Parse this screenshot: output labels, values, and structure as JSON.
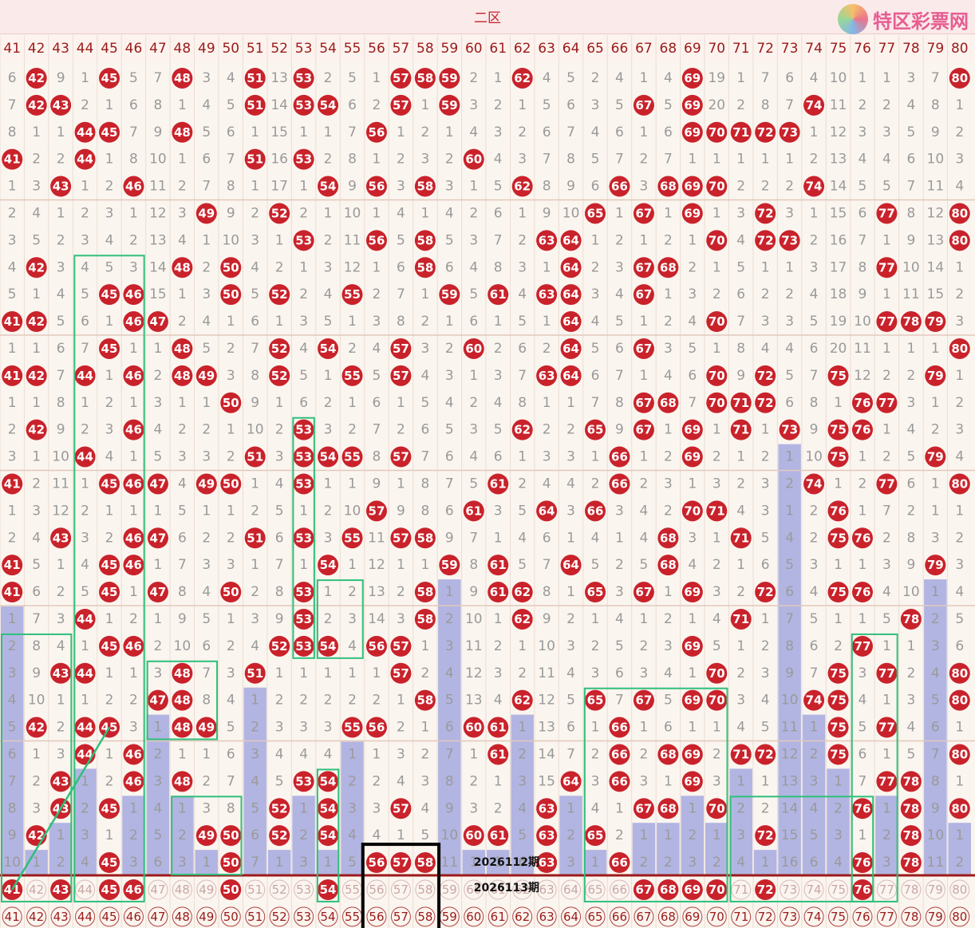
{
  "header": {
    "zone_title": "二区",
    "logo_text": "特区彩票网"
  },
  "colors": {
    "hit_ball": "#c9222b",
    "miss_bar": "#aaaee0",
    "highlight_box": "#2ebf7a",
    "selection_box": "#000000",
    "divider": "#9c1b1b"
  },
  "chart_data": {
    "type": "table",
    "columns": [
      "41",
      "42",
      "43",
      "44",
      "45",
      "46",
      "47",
      "48",
      "49",
      "50",
      "51",
      "52",
      "53",
      "54",
      "55",
      "56",
      "57",
      "58",
      "59",
      "60",
      "61",
      "62",
      "63",
      "64",
      "65",
      "66",
      "67",
      "68",
      "69",
      "70",
      "71",
      "72",
      "73",
      "74",
      "75",
      "76",
      "77",
      "78",
      "79",
      "80"
    ],
    "rows": [
      [
        6,
        "42",
        9,
        1,
        "45",
        5,
        7,
        "48",
        3,
        4,
        "51",
        13,
        "53",
        2,
        5,
        1,
        "57",
        "58",
        "59",
        2,
        1,
        "62",
        4,
        5,
        2,
        4,
        1,
        4,
        "69",
        19,
        1,
        7,
        6,
        4,
        10,
        1,
        1,
        3,
        7,
        "80"
      ],
      [
        7,
        "42",
        "43",
        2,
        1,
        6,
        8,
        1,
        4,
        5,
        "51",
        14,
        "53",
        "54",
        6,
        2,
        "57",
        1,
        "59",
        3,
        2,
        1,
        5,
        6,
        3,
        5,
        "67",
        5,
        "69",
        20,
        2,
        8,
        7,
        "74",
        11,
        2,
        2,
        4,
        8,
        1
      ],
      [
        8,
        1,
        1,
        "44",
        "45",
        7,
        9,
        "48",
        5,
        6,
        1,
        15,
        1,
        1,
        7,
        "56",
        1,
        2,
        1,
        4,
        3,
        2,
        6,
        7,
        4,
        6,
        1,
        6,
        "69",
        "70",
        "71",
        "72",
        "73",
        1,
        12,
        3,
        3,
        5,
        9,
        2
      ],
      [
        "41",
        2,
        2,
        "44",
        1,
        8,
        10,
        1,
        6,
        7,
        "51",
        16,
        "53",
        2,
        8,
        1,
        2,
        3,
        2,
        "60",
        4,
        3,
        7,
        8,
        5,
        7,
        2,
        7,
        1,
        1,
        1,
        1,
        1,
        2,
        13,
        4,
        4,
        6,
        10,
        3
      ],
      [
        1,
        3,
        "43",
        1,
        2,
        "46",
        11,
        2,
        7,
        8,
        1,
        17,
        1,
        "54",
        9,
        "56",
        3,
        "58",
        3,
        1,
        5,
        "62",
        8,
        9,
        6,
        "66",
        3,
        "68",
        "69",
        "70",
        2,
        2,
        2,
        "74",
        14,
        5,
        5,
        7,
        11,
        4
      ],
      [
        2,
        4,
        1,
        2,
        3,
        1,
        12,
        3,
        "49",
        9,
        2,
        "52",
        2,
        1,
        10,
        1,
        4,
        1,
        4,
        2,
        6,
        1,
        9,
        10,
        "65",
        1,
        "67",
        1,
        "69",
        1,
        3,
        "72",
        3,
        1,
        15,
        6,
        "77",
        8,
        12,
        "80"
      ],
      [
        3,
        5,
        2,
        3,
        4,
        2,
        13,
        4,
        1,
        10,
        3,
        1,
        "53",
        2,
        11,
        "56",
        5,
        "58",
        5,
        3,
        7,
        2,
        "63",
        "64",
        1,
        2,
        1,
        2,
        1,
        "70",
        4,
        "72",
        "73",
        2,
        16,
        7,
        1,
        9,
        13,
        "80"
      ],
      [
        4,
        "42",
        3,
        4,
        5,
        3,
        14,
        "48",
        2,
        "50",
        4,
        2,
        1,
        3,
        12,
        1,
        6,
        "58",
        6,
        4,
        8,
        3,
        1,
        "64",
        2,
        3,
        "67",
        "68",
        2,
        1,
        5,
        1,
        1,
        3,
        17,
        8,
        "77",
        10,
        14,
        1
      ],
      [
        5,
        1,
        4,
        5,
        "45",
        "46",
        15,
        1,
        3,
        "50",
        5,
        "52",
        2,
        4,
        "55",
        2,
        7,
        1,
        "59",
        5,
        "61",
        4,
        "63",
        "64",
        3,
        4,
        "67",
        1,
        3,
        2,
        6,
        2,
        2,
        4,
        18,
        9,
        1,
        11,
        15,
        2
      ],
      [
        "41",
        "42",
        5,
        6,
        1,
        "46",
        "47",
        2,
        4,
        1,
        6,
        1,
        3,
        5,
        1,
        3,
        8,
        2,
        1,
        6,
        1,
        5,
        1,
        "64",
        4,
        5,
        1,
        2,
        4,
        "70",
        7,
        3,
        3,
        5,
        19,
        10,
        "77",
        "78",
        "79",
        3
      ],
      [
        1,
        1,
        6,
        7,
        "45",
        1,
        1,
        "48",
        5,
        2,
        7,
        "52",
        4,
        "54",
        2,
        4,
        "57",
        3,
        2,
        "60",
        2,
        6,
        2,
        "64",
        5,
        6,
        "67",
        3,
        5,
        1,
        8,
        4,
        4,
        6,
        20,
        11,
        1,
        1,
        1,
        "80"
      ],
      [
        "41",
        "42",
        7,
        "44",
        1,
        "46",
        2,
        "48",
        "49",
        3,
        8,
        "52",
        5,
        1,
        "55",
        5,
        "57",
        4,
        3,
        1,
        3,
        7,
        "63",
        "64",
        6,
        7,
        1,
        4,
        6,
        "70",
        9,
        "72",
        5,
        7,
        "75",
        12,
        2,
        2,
        "79",
        1
      ],
      [
        1,
        1,
        8,
        1,
        2,
        1,
        3,
        1,
        1,
        "50",
        9,
        1,
        6,
        2,
        1,
        6,
        1,
        5,
        4,
        2,
        4,
        8,
        1,
        1,
        7,
        8,
        "67",
        "68",
        7,
        "70",
        "71",
        "72",
        6,
        8,
        1,
        "76",
        "77",
        3,
        1,
        2
      ],
      [
        2,
        "42",
        9,
        2,
        3,
        "46",
        4,
        2,
        2,
        1,
        10,
        2,
        "53",
        3,
        2,
        7,
        2,
        6,
        5,
        3,
        5,
        "62",
        2,
        2,
        "65",
        9,
        "67",
        1,
        "69",
        1,
        "71",
        1,
        "73",
        9,
        "75",
        "76",
        1,
        4,
        2,
        3
      ],
      [
        3,
        1,
        10,
        "44",
        4,
        1,
        5,
        3,
        3,
        2,
        "51",
        3,
        "53",
        "54",
        "55",
        8,
        "57",
        7,
        6,
        4,
        6,
        1,
        3,
        3,
        1,
        "66",
        1,
        2,
        "69",
        2,
        1,
        2,
        1,
        10,
        "75",
        1,
        2,
        5,
        "79",
        4
      ],
      [
        "41",
        2,
        11,
        1,
        "45",
        "46",
        "47",
        4,
        "49",
        "50",
        1,
        4,
        "53",
        1,
        1,
        9,
        1,
        8,
        7,
        5,
        "61",
        2,
        4,
        4,
        2,
        "66",
        2,
        3,
        1,
        3,
        2,
        3,
        2,
        "74",
        1,
        2,
        "77",
        6,
        1,
        "80"
      ],
      [
        1,
        3,
        12,
        2,
        1,
        1,
        1,
        5,
        1,
        1,
        2,
        5,
        1,
        2,
        10,
        "57",
        9,
        8,
        6,
        "61",
        3,
        5,
        "64",
        3,
        "66",
        3,
        4,
        2,
        "70",
        "71",
        4,
        3,
        1,
        2,
        "76",
        1,
        7,
        2,
        1,
        1
      ],
      [
        2,
        4,
        "43",
        3,
        2,
        "46",
        "47",
        6,
        2,
        2,
        "51",
        6,
        "53",
        3,
        "55",
        11,
        "57",
        "58",
        9,
        7,
        1,
        4,
        6,
        1,
        4,
        1,
        4,
        "68",
        3,
        1,
        "71",
        5,
        4,
        2,
        "75",
        "76",
        2,
        8,
        3,
        2
      ],
      [
        "41",
        5,
        1,
        4,
        "45",
        "46",
        1,
        7,
        3,
        3,
        1,
        7,
        1,
        "54",
        1,
        12,
        1,
        1,
        "59",
        8,
        "61",
        5,
        7,
        "64",
        5,
        2,
        5,
        "68",
        4,
        2,
        1,
        6,
        5,
        3,
        1,
        1,
        3,
        9,
        "79",
        3
      ],
      [
        "41",
        6,
        2,
        5,
        "45",
        1,
        "47",
        8,
        4,
        "50",
        2,
        8,
        "53",
        1,
        2,
        13,
        2,
        "58",
        1,
        9,
        "61",
        "62",
        8,
        1,
        "65",
        3,
        "67",
        1,
        "69",
        3,
        2,
        "72",
        6,
        4,
        "75",
        "76",
        4,
        10,
        1,
        4
      ],
      [
        1,
        7,
        3,
        "44",
        1,
        2,
        1,
        9,
        5,
        1,
        3,
        9,
        "53",
        2,
        3,
        14,
        3,
        "58",
        2,
        10,
        1,
        "62",
        9,
        2,
        1,
        4,
        1,
        2,
        1,
        4,
        "71",
        1,
        7,
        5,
        1,
        1,
        5,
        "78",
        2,
        5
      ],
      [
        2,
        8,
        4,
        1,
        "45",
        "46",
        2,
        10,
        6,
        2,
        4,
        "52",
        "53",
        "54",
        4,
        "56",
        "57",
        1,
        3,
        11,
        2,
        1,
        10,
        3,
        2,
        5,
        2,
        3,
        "69",
        5,
        1,
        2,
        8,
        6,
        2,
        "77",
        1,
        1,
        3,
        6
      ],
      [
        3,
        9,
        "43",
        "44",
        1,
        1,
        3,
        "48",
        7,
        3,
        "51",
        1,
        1,
        1,
        1,
        1,
        "57",
        2,
        4,
        12,
        3,
        2,
        11,
        4,
        3,
        6,
        3,
        4,
        1,
        "70",
        2,
        3,
        9,
        7,
        "75",
        3,
        "77",
        2,
        4,
        "80"
      ],
      [
        4,
        10,
        1,
        1,
        2,
        2,
        "47",
        "48",
        8,
        4,
        1,
        2,
        2,
        2,
        2,
        2,
        1,
        "58",
        5,
        13,
        4,
        "62",
        12,
        5,
        "65",
        7,
        "67",
        5,
        "69",
        "70",
        3,
        4,
        10,
        "74",
        "75",
        4,
        1,
        3,
        5,
        "80"
      ],
      [
        5,
        "42",
        2,
        "44",
        "45",
        3,
        1,
        "48",
        "49",
        5,
        2,
        3,
        3,
        3,
        "55",
        "56",
        2,
        1,
        6,
        "60",
        "61",
        1,
        13,
        6,
        1,
        "66",
        1,
        6,
        1,
        1,
        4,
        5,
        11,
        1,
        "75",
        5,
        "77",
        4,
        6,
        1
      ],
      [
        6,
        1,
        3,
        "44",
        1,
        "46",
        2,
        1,
        1,
        6,
        3,
        4,
        4,
        4,
        1,
        1,
        3,
        2,
        7,
        1,
        "61",
        2,
        14,
        7,
        2,
        "66",
        2,
        "68",
        "69",
        2,
        "71",
        "72",
        12,
        2,
        "75",
        6,
        1,
        5,
        7,
        "80"
      ],
      [
        7,
        2,
        "43",
        1,
        2,
        "46",
        3,
        "48",
        2,
        7,
        4,
        5,
        "53",
        "54",
        2,
        2,
        4,
        3,
        8,
        2,
        1,
        3,
        15,
        "64",
        3,
        "66",
        3,
        1,
        "69",
        3,
        1,
        1,
        13,
        3,
        1,
        7,
        "77",
        "78",
        8,
        1
      ],
      [
        8,
        3,
        "43",
        2,
        "45",
        1,
        4,
        1,
        3,
        8,
        5,
        "52",
        1,
        "54",
        3,
        3,
        "57",
        4,
        9,
        3,
        2,
        4,
        "63",
        1,
        4,
        1,
        "67",
        "68",
        1,
        "70",
        2,
        2,
        14,
        4,
        2,
        "76",
        1,
        "78",
        9,
        "80"
      ],
      [
        9,
        "42",
        1,
        3,
        1,
        2,
        5,
        2,
        "49",
        "50",
        6,
        "52",
        2,
        "54",
        4,
        4,
        1,
        5,
        10,
        "60",
        "61",
        5,
        "63",
        2,
        "65",
        2,
        1,
        1,
        2,
        1,
        3,
        "72",
        15,
        5,
        3,
        1,
        2,
        "78",
        10,
        1
      ],
      [
        10,
        1,
        2,
        4,
        "45",
        3,
        6,
        3,
        1,
        "50",
        7,
        1,
        3,
        1,
        5,
        "56",
        "57",
        "58",
        11,
        1,
        1,
        6,
        "63",
        3,
        1,
        "66",
        2,
        2,
        3,
        2,
        4,
        1,
        16,
        6,
        4,
        "76",
        3,
        "78",
        11,
        2
      ],
      [
        "41",
        "42",
        "43",
        "44",
        "45",
        "46",
        "47",
        "48",
        "49",
        "50",
        "51",
        "52",
        "53",
        "54",
        "55",
        "56",
        "57",
        "58",
        "59",
        "60",
        "61",
        "62",
        "63",
        "64",
        "65",
        "66",
        "67",
        "68",
        "69",
        "70",
        "71",
        "72",
        "73",
        "74",
        "75",
        "76",
        "77",
        "78",
        "79",
        "80"
      ],
      [
        "41",
        "42",
        "43",
        "44",
        "45",
        "46",
        "47",
        "48",
        "49",
        "50",
        "51",
        "52",
        "53",
        "54",
        "55",
        "56",
        "57",
        "58",
        "59",
        "60",
        "61",
        "62",
        "63",
        "64",
        "65",
        "66",
        "67",
        "68",
        "69",
        "70",
        "71",
        "72",
        "73",
        "74",
        "75",
        "76",
        "77",
        "78",
        "79",
        "80"
      ]
    ],
    "highlighted_numbers_row_31": [
      "41",
      "43",
      "45",
      "46",
      "50",
      "54",
      "67",
      "68",
      "69",
      "70",
      "72",
      "76"
    ],
    "period_labels": [
      "2026112期",
      "2026113期"
    ]
  }
}
